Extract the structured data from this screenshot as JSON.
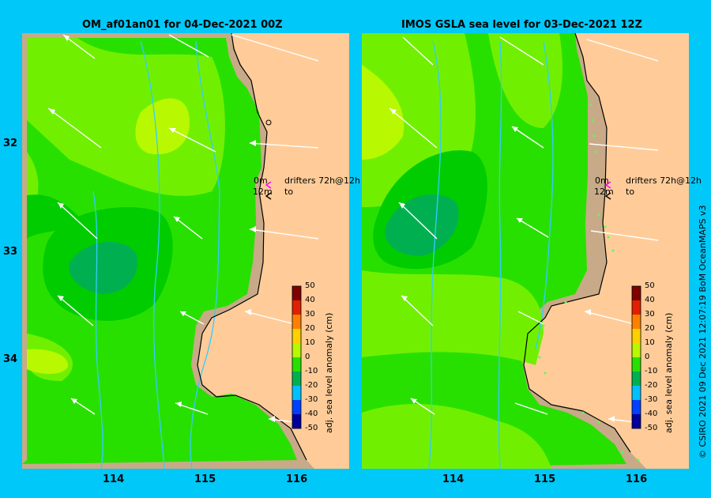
{
  "left_panel": {
    "title": "OM_af01an01 for 04-Dec-2021 00Z",
    "legend_line1": "0m",
    "legend_line1b": "drifters 72h@12h",
    "legend_line2": "12m",
    "legend_line2b": "to"
  },
  "right_panel": {
    "title": "IMOS GSLA sea level  for 03-Dec-2021 12Z",
    "legend_line1": "0m",
    "legend_line1b": "drifters 72h@12h",
    "legend_line2": "12m",
    "legend_line2b": "to"
  },
  "latitude_labels": [
    "32",
    "33",
    "34"
  ],
  "longitude_labels": [
    "114",
    "115",
    "116"
  ],
  "colorbar": {
    "title": "adj. sea level anomaly (cm)",
    "ticks": [
      "50",
      "40",
      "30",
      "20",
      "10",
      "0",
      "-10",
      "-20",
      "-30",
      "-40",
      "-50"
    ]
  },
  "credit": "© CSIRO 2021   09 Dec 2021 12:07:19 BoM OceanMAPS v3",
  "colors": {
    "background": "#00c8f8",
    "land": "#ffcc99",
    "shelf_sand": "#c8aa88",
    "green_0_10": "#28e000",
    "green_10_20": "#70f000",
    "green_20_30": "#b8f800",
    "green_neg": "#00cc00",
    "teal_neg": "#00b050",
    "bathymetry": "#33ccff",
    "legend_arrow_0m": "#ff00ff"
  }
}
